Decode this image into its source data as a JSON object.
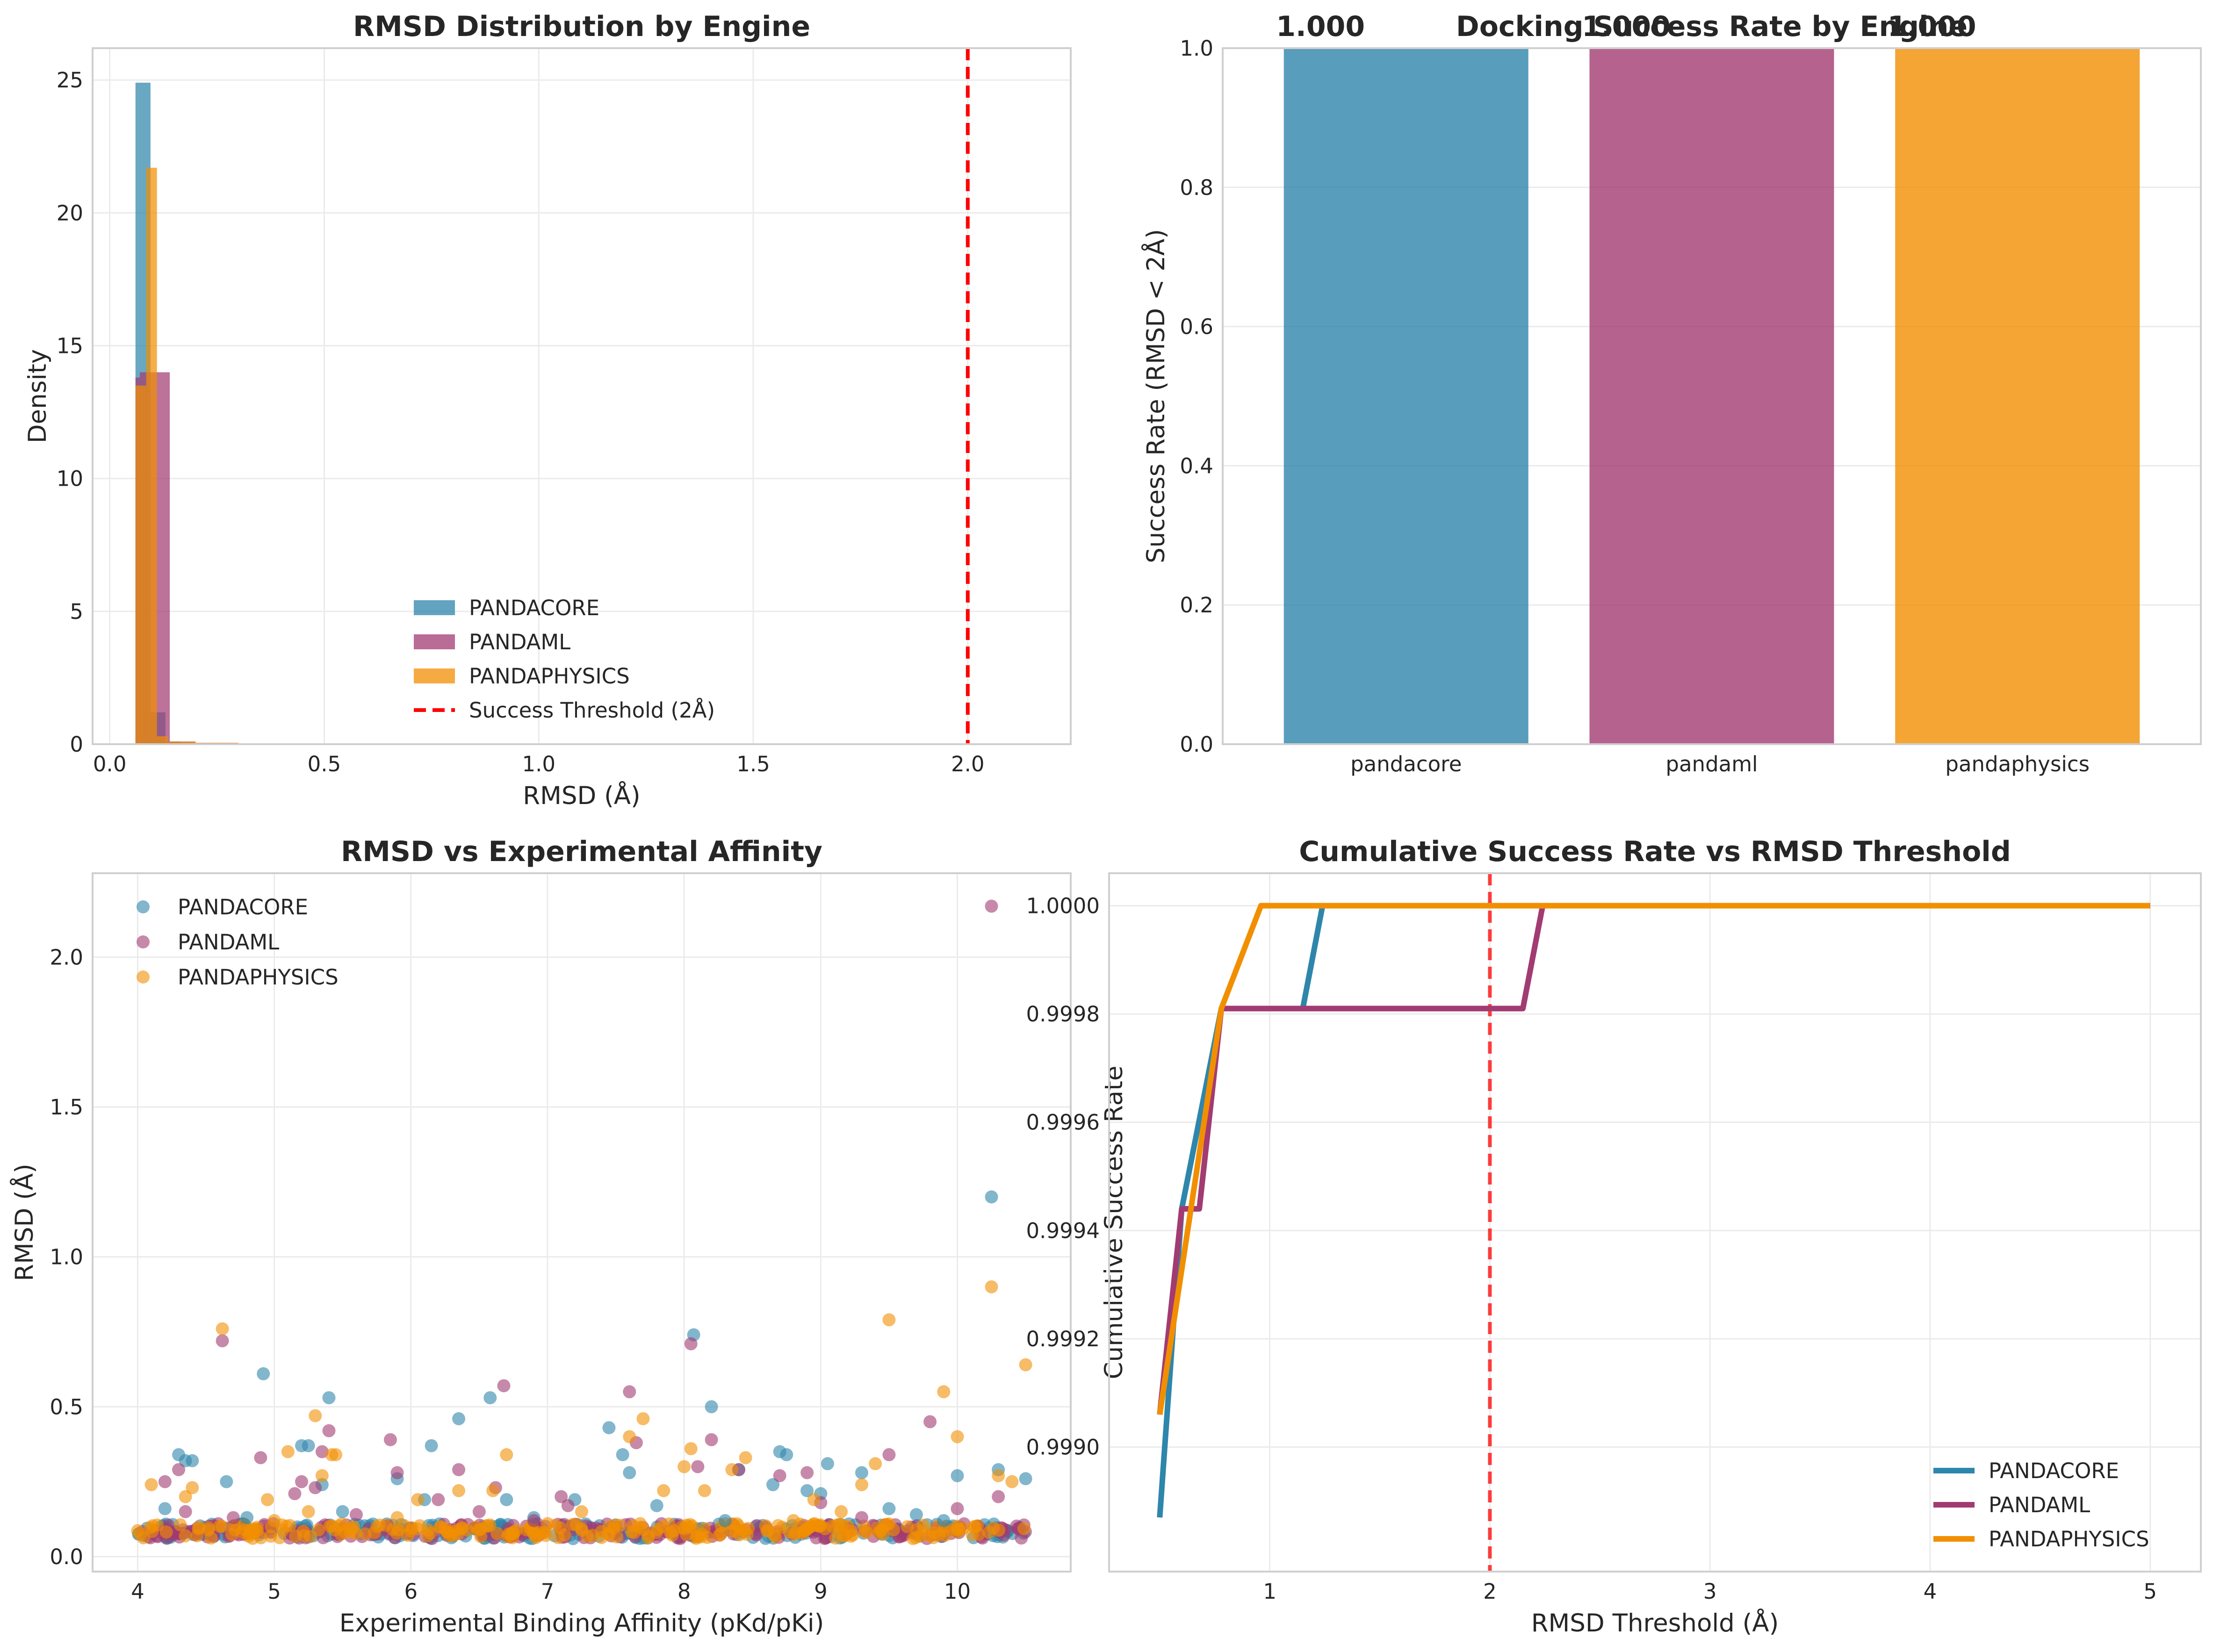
{
  "colors": {
    "pandacore": "#2E86AB",
    "pandaml": "#A23B72",
    "pandaphysics": "#F18F01",
    "threshold": "#ff0000"
  },
  "chart_data": [
    {
      "type": "histogram",
      "title": "RMSD Distribution by Engine",
      "xlabel": "RMSD (Å)",
      "ylabel": "Density",
      "xlim": [
        -0.04,
        2.24
      ],
      "ylim": [
        0,
        26.2
      ],
      "xticks": [
        "0.0",
        "0.5",
        "1.0",
        "1.5",
        "2.0"
      ],
      "xtick_values": [
        0,
        0.5,
        1.0,
        1.5,
        2.0
      ],
      "yticks": [
        "0",
        "5",
        "10",
        "15",
        "20",
        "25"
      ],
      "ytick_values": [
        0,
        5,
        10,
        15,
        20,
        25
      ],
      "grid": true,
      "legend_position": "lower-center",
      "series": [
        {
          "name": "PANDACORE",
          "key": "pandacore",
          "bins": [
            [
              0.06,
              0.095,
              24.9
            ],
            [
              0.095,
              0.13,
              1.2
            ],
            [
              0.13,
              0.165,
              0.1
            ]
          ]
        },
        {
          "name": "PANDAML",
          "key": "pandaml",
          "bins": [
            [
              0.06,
              0.07,
              13.8
            ],
            [
              0.07,
              0.14,
              14.0
            ],
            [
              0.14,
              0.2,
              0.1
            ],
            [
              0.2,
              0.3,
              0.05
            ]
          ]
        },
        {
          "name": "PANDAPHYSICS",
          "key": "pandaphysics",
          "bins": [
            [
              0.06,
              0.085,
              13.5
            ],
            [
              0.085,
              0.11,
              21.7
            ],
            [
              0.11,
              0.135,
              0.3
            ],
            [
              0.135,
              0.2,
              0.1
            ],
            [
              0.2,
              0.3,
              0.05
            ]
          ]
        }
      ],
      "threshold": {
        "name": "Success Threshold (2Å)",
        "x": 2.0
      }
    },
    {
      "type": "bar",
      "title": "Docking Success Rate by Engine",
      "ylabel": "Success Rate (RMSD < 2Å)",
      "categories": [
        "pandacore",
        "pandaml",
        "pandaphysics"
      ],
      "values": [
        1.0,
        1.0,
        1.0
      ],
      "value_labels": [
        "1.000",
        "1.000",
        "1.000"
      ],
      "ylim": [
        0,
        1.0
      ],
      "yticks": [
        "0.0",
        "0.2",
        "0.4",
        "0.6",
        "0.8",
        "1.0"
      ],
      "ytick_values": [
        0,
        0.2,
        0.4,
        0.6,
        0.8,
        1.0
      ],
      "grid": true
    },
    {
      "type": "scatter",
      "title": "RMSD vs Experimental Affinity",
      "xlabel": "Experimental Binding Affinity (pKd/pKi)",
      "ylabel": "RMSD (Å)",
      "xlim": [
        3.67,
        10.83
      ],
      "ylim": [
        -0.05,
        2.28
      ],
      "xticks": [
        "4",
        "5",
        "6",
        "7",
        "8",
        "9",
        "10"
      ],
      "xtick_values": [
        4,
        5,
        6,
        7,
        8,
        9,
        10
      ],
      "yticks": [
        "0.0",
        "0.5",
        "1.0",
        "1.5",
        "2.0"
      ],
      "ytick_values": [
        0,
        0.5,
        1.0,
        1.5,
        2.0
      ],
      "grid": true,
      "legend_position": "top-left",
      "baseline_band": {
        "x": [
          4.0,
          10.5
        ],
        "y": [
          0.06,
          0.11
        ]
      },
      "series": [
        {
          "name": "PANDACORE",
          "key": "pandacore",
          "points": [
            [
              4.2,
              0.16
            ],
            [
              4.3,
              0.34
            ],
            [
              4.35,
              0.32
            ],
            [
              4.4,
              0.32
            ],
            [
              4.65,
              0.25
            ],
            [
              4.92,
              0.61
            ],
            [
              5.2,
              0.37
            ],
            [
              5.25,
              0.37
            ],
            [
              5.4,
              0.53
            ],
            [
              5.35,
              0.24
            ],
            [
              5.9,
              0.26
            ],
            [
              6.1,
              0.19
            ],
            [
              6.15,
              0.37
            ],
            [
              6.35,
              0.46
            ],
            [
              6.58,
              0.53
            ],
            [
              6.7,
              0.19
            ],
            [
              7.2,
              0.19
            ],
            [
              7.45,
              0.43
            ],
            [
              7.55,
              0.34
            ],
            [
              7.6,
              0.28
            ],
            [
              7.8,
              0.17
            ],
            [
              8.07,
              0.74
            ],
            [
              8.2,
              0.5
            ],
            [
              8.4,
              0.29
            ],
            [
              8.65,
              0.24
            ],
            [
              8.7,
              0.35
            ],
            [
              8.75,
              0.34
            ],
            [
              8.9,
              0.22
            ],
            [
              9.0,
              0.21
            ],
            [
              9.05,
              0.31
            ],
            [
              9.3,
              0.28
            ],
            [
              9.5,
              0.16
            ],
            [
              9.9,
              0.12
            ],
            [
              10.0,
              0.27
            ],
            [
              10.25,
              1.2
            ],
            [
              10.3,
              0.29
            ],
            [
              10.5,
              0.26
            ],
            [
              5.5,
              0.15
            ],
            [
              6.9,
              0.13
            ],
            [
              8.3,
              0.12
            ],
            [
              9.7,
              0.14
            ],
            [
              4.8,
              0.13
            ]
          ]
        },
        {
          "name": "PANDAML",
          "key": "pandaml",
          "points": [
            [
              4.2,
              0.25
            ],
            [
              4.3,
              0.29
            ],
            [
              4.35,
              0.15
            ],
            [
              4.62,
              0.72
            ],
            [
              4.7,
              0.13
            ],
            [
              4.9,
              0.33
            ],
            [
              5.15,
              0.21
            ],
            [
              5.2,
              0.25
            ],
            [
              5.3,
              0.23
            ],
            [
              5.35,
              0.35
            ],
            [
              5.4,
              0.42
            ],
            [
              5.85,
              0.39
            ],
            [
              5.9,
              0.28
            ],
            [
              6.2,
              0.19
            ],
            [
              6.35,
              0.29
            ],
            [
              6.5,
              0.15
            ],
            [
              6.62,
              0.23
            ],
            [
              6.68,
              0.57
            ],
            [
              7.1,
              0.2
            ],
            [
              7.15,
              0.17
            ],
            [
              7.6,
              0.55
            ],
            [
              7.65,
              0.38
            ],
            [
              8.05,
              0.71
            ],
            [
              8.1,
              0.3
            ],
            [
              8.2,
              0.39
            ],
            [
              8.4,
              0.29
            ],
            [
              8.7,
              0.27
            ],
            [
              8.9,
              0.28
            ],
            [
              9.0,
              0.18
            ],
            [
              9.5,
              0.34
            ],
            [
              9.8,
              0.45
            ],
            [
              10.0,
              0.16
            ],
            [
              10.25,
              2.17
            ],
            [
              10.3,
              0.2
            ],
            [
              5.6,
              0.14
            ],
            [
              6.9,
              0.12
            ],
            [
              9.3,
              0.13
            ]
          ]
        },
        {
          "name": "PANDAPHYSICS",
          "key": "pandaphysics",
          "points": [
            [
              4.1,
              0.24
            ],
            [
              4.35,
              0.2
            ],
            [
              4.4,
              0.23
            ],
            [
              4.62,
              0.76
            ],
            [
              4.95,
              0.19
            ],
            [
              5.1,
              0.35
            ],
            [
              5.25,
              0.15
            ],
            [
              5.3,
              0.47
            ],
            [
              5.35,
              0.27
            ],
            [
              5.42,
              0.34
            ],
            [
              5.45,
              0.34
            ],
            [
              5.9,
              0.13
            ],
            [
              6.05,
              0.19
            ],
            [
              6.35,
              0.22
            ],
            [
              6.6,
              0.22
            ],
            [
              6.7,
              0.34
            ],
            [
              7.25,
              0.15
            ],
            [
              7.6,
              0.4
            ],
            [
              7.7,
              0.46
            ],
            [
              7.85,
              0.22
            ],
            [
              8.0,
              0.3
            ],
            [
              8.05,
              0.36
            ],
            [
              8.15,
              0.22
            ],
            [
              8.35,
              0.29
            ],
            [
              8.45,
              0.33
            ],
            [
              8.95,
              0.19
            ],
            [
              9.15,
              0.15
            ],
            [
              9.3,
              0.24
            ],
            [
              9.4,
              0.31
            ],
            [
              9.5,
              0.79
            ],
            [
              9.9,
              0.55
            ],
            [
              10.0,
              0.4
            ],
            [
              10.25,
              0.9
            ],
            [
              10.3,
              0.27
            ],
            [
              10.4,
              0.25
            ],
            [
              10.5,
              0.64
            ],
            [
              5.0,
              0.12
            ],
            [
              7.0,
              0.11
            ],
            [
              8.8,
              0.12
            ]
          ]
        }
      ]
    },
    {
      "type": "line",
      "title": "Cumulative Success Rate vs RMSD Threshold",
      "xlabel": "RMSD Threshold (Å)",
      "ylabel": "Cumulative Success Rate",
      "xlim": [
        0.27,
        5.23
      ],
      "ylim": [
        0.99877,
        1.00006
      ],
      "xticks": [
        "1",
        "2",
        "3",
        "4",
        "5"
      ],
      "xtick_values": [
        1,
        2,
        3,
        4,
        5
      ],
      "yticks": [
        "0.9990",
        "0.9992",
        "0.9994",
        "0.9996",
        "0.9998",
        "1.0000"
      ],
      "ytick_values": [
        0.999,
        0.9992,
        0.9994,
        0.9996,
        0.9998,
        1.0
      ],
      "grid": true,
      "legend_position": "bottom-right",
      "threshold_x": 2.0,
      "series": [
        {
          "name": "PANDACORE",
          "key": "pandacore",
          "points": [
            [
              0.5,
              0.99887
            ],
            [
              0.6,
              0.99944
            ],
            [
              0.78,
              0.99981
            ],
            [
              1.15,
              0.99981
            ],
            [
              1.24,
              1.0
            ],
            [
              5.0,
              1.0
            ]
          ]
        },
        {
          "name": "PANDAML",
          "key": "pandaml",
          "points": [
            [
              0.5,
              0.99906
            ],
            [
              0.6,
              0.99944
            ],
            [
              0.68,
              0.99944
            ],
            [
              0.78,
              0.99981
            ],
            [
              2.15,
              0.99981
            ],
            [
              2.24,
              1.0
            ],
            [
              5.0,
              1.0
            ]
          ]
        },
        {
          "name": "PANDAPHYSICS",
          "key": "pandaphysics",
          "points": [
            [
              0.5,
              0.99906
            ],
            [
              0.78,
              0.99981
            ],
            [
              0.96,
              1.0
            ],
            [
              5.0,
              1.0
            ]
          ]
        }
      ]
    }
  ]
}
